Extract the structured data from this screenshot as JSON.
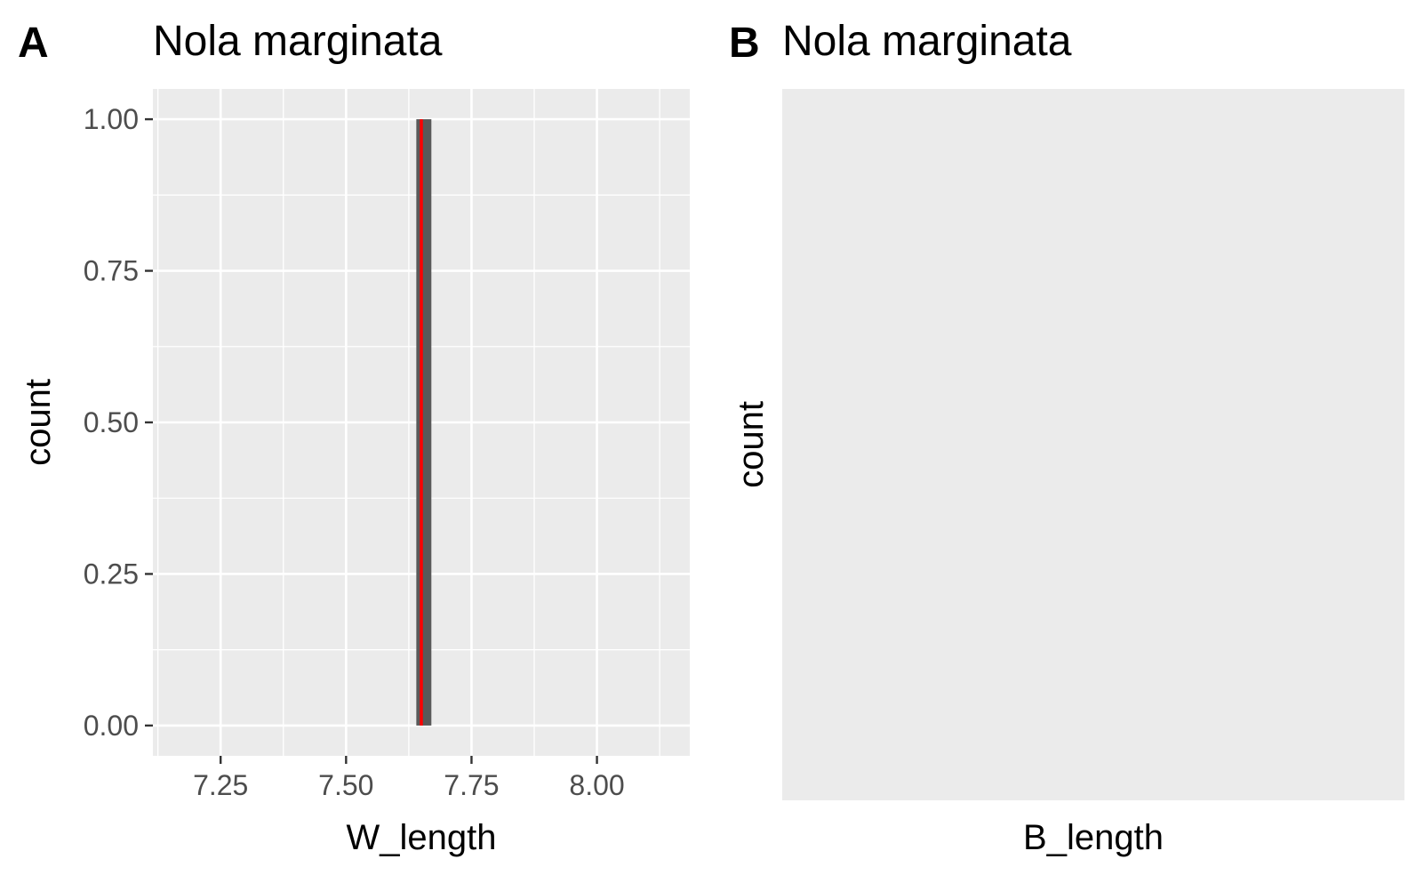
{
  "colors": {
    "panel_bg": "#ebebeb",
    "grid": "#ffffff",
    "bar_fill": "#595959",
    "mean_line": "#ff0000",
    "tick": "#333333",
    "tick_text": "#4d4d4d"
  },
  "chart_data": [
    {
      "tag": "A",
      "type": "bar",
      "title": "Nola marginata",
      "xlabel": "W_length",
      "ylabel": "count",
      "xlim": [
        7.115,
        8.185
      ],
      "ylim": [
        -0.05,
        1.05
      ],
      "x_ticks": [
        {
          "value": 7.25,
          "label": "7.25"
        },
        {
          "value": 7.5,
          "label": "7.50"
        },
        {
          "value": 7.75,
          "label": "7.75"
        },
        {
          "value": 8.0,
          "label": "8.00"
        }
      ],
      "y_ticks": [
        {
          "value": 0,
          "label": "0.00"
        },
        {
          "value": 0.25,
          "label": "0.25"
        },
        {
          "value": 0.5,
          "label": "0.50"
        },
        {
          "value": 0.75,
          "label": "0.75"
        },
        {
          "value": 1.0,
          "label": "1.00"
        }
      ],
      "bars": [
        {
          "xmin": 7.64,
          "xmax": 7.67,
          "count": 1
        }
      ],
      "vline": {
        "x": 7.65
      },
      "grid": true
    },
    {
      "tag": "B",
      "type": "bar",
      "title": "Nola marginata",
      "xlabel": "B_length",
      "ylabel": "count",
      "bars": [],
      "grid": false
    }
  ]
}
